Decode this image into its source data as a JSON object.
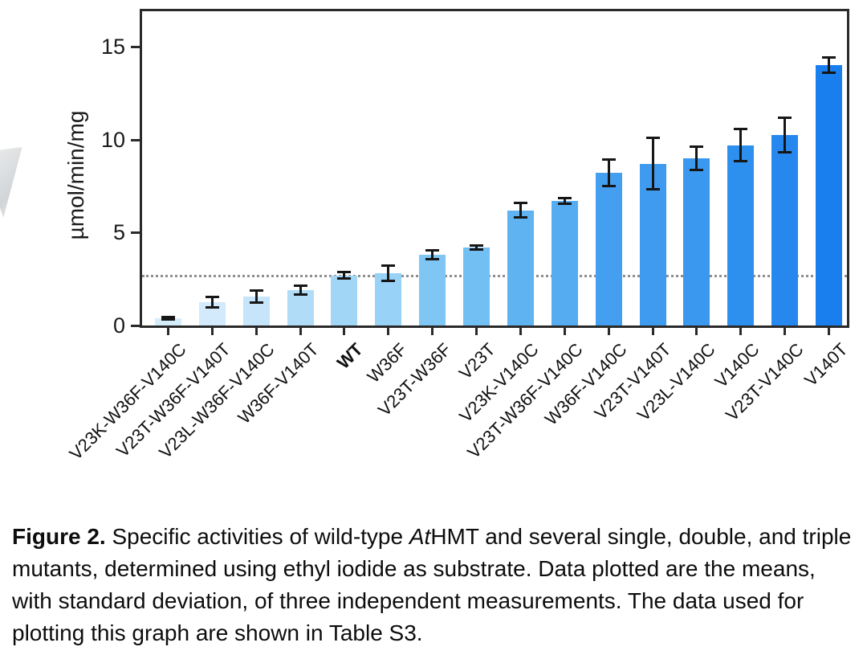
{
  "figure": {
    "caption": {
      "label": "Figure 2.",
      "text_before_italic": " Specific activities of wild-type ",
      "italic": "At",
      "text_after_italic": "HMT and several single, double, and triple mutants, determined using ethyl iodide as substrate. Data plotted are the means, with standard deviation, of three independent measurements. The data used for plotting this graph are shown in Table S3."
    }
  },
  "chart_data": {
    "type": "bar",
    "title": "",
    "xlabel": "",
    "ylabel": "µmol/min/mg",
    "ylim": [
      0,
      16.9
    ],
    "yticks": [
      0,
      5,
      10,
      15
    ],
    "grid": false,
    "legend": "none",
    "error_bars": "standard deviation",
    "reference_line": {
      "value": 2.7,
      "style": "dotted",
      "color": "#8f8f8f",
      "meaning": "wild-type activity level"
    },
    "highlight_category": "WT",
    "categories": [
      "V23K-W36F-V140C",
      "V23T-W36F-V140T",
      "V23L-W36F-V140C",
      "W36F-V140T",
      "WT",
      "W36F",
      "V23T-W36F",
      "V23T",
      "V23K-V140C",
      "V23T-W36F-V140C",
      "W36F-V140C",
      "V23T-V140T",
      "V23L-V140C",
      "V140C",
      "V23T-V140C",
      "V140T"
    ],
    "values": [
      0.4,
      1.25,
      1.55,
      1.9,
      2.7,
      2.8,
      3.8,
      4.2,
      6.2,
      6.7,
      8.2,
      8.7,
      9.0,
      9.7,
      10.25,
      14.0
    ],
    "sd": [
      0.05,
      0.25,
      0.3,
      0.2,
      0.15,
      0.4,
      0.2,
      0.1,
      0.35,
      0.15,
      0.7,
      1.35,
      0.6,
      0.85,
      0.9,
      0.4
    ],
    "bar_colors": [
      "#d5ecfb",
      "#d2eafb",
      "#c6e4fa",
      "#b0dcf8",
      "#a2d6f7",
      "#98d2f6",
      "#7fc6f4",
      "#71bff3",
      "#60b3f1",
      "#56acf0",
      "#459ff0",
      "#3e9bef",
      "#3a99ef",
      "#2e90ee",
      "#2688ee",
      "#1a7fee"
    ]
  },
  "colors": {
    "axis": "#2a2a2a",
    "error_bar": "#161616",
    "background": "#ffffff"
  }
}
